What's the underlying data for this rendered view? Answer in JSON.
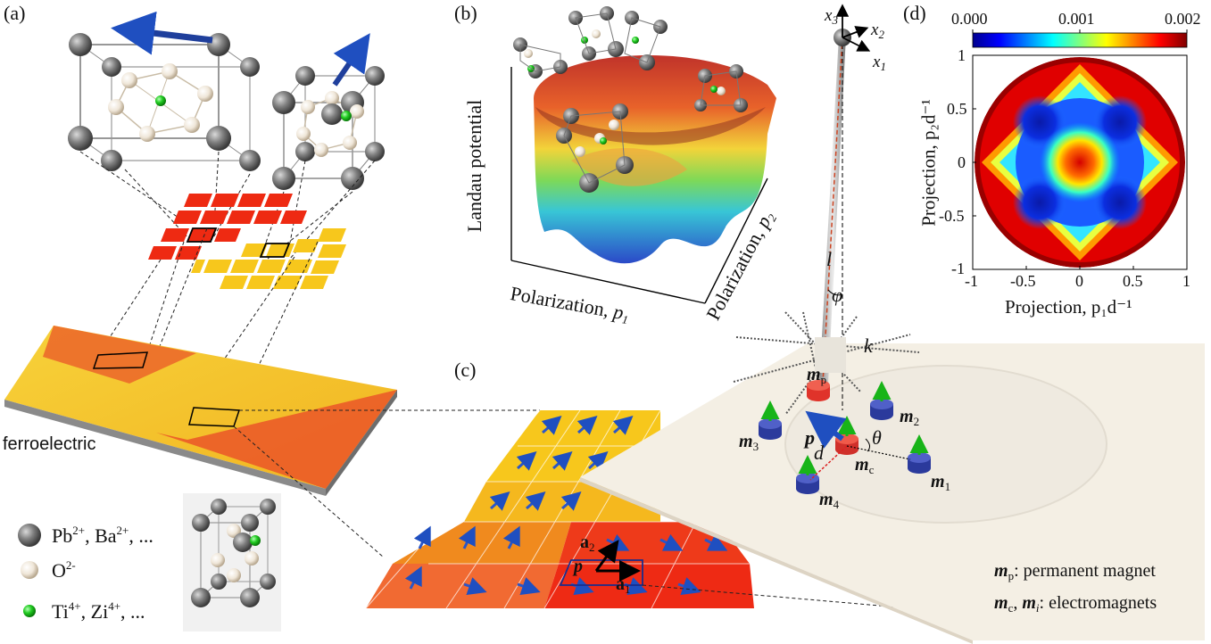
{
  "panels": {
    "a": "(a)",
    "b": "(b)",
    "c": "(c)",
    "d": "(d)"
  },
  "panel_a": {
    "material_label": "ferroelectric",
    "legend": [
      {
        "ion": "Pb",
        "charge": "2+",
        "rest": ", Ba",
        "charge2": "2+",
        "tail": ", ...",
        "color": "#6e6e6e"
      },
      {
        "ion": "O",
        "charge": "2-",
        "rest": "",
        "charge2": "",
        "tail": "",
        "color": "#e8dccb"
      },
      {
        "ion": "Ti",
        "charge": "4+",
        "rest": ", Zi",
        "charge2": "4+",
        "tail": ", ...",
        "color": "#19c419"
      }
    ]
  },
  "panel_b": {
    "ylabel": "Landau potential",
    "xlabel": "Polarization, ",
    "xvar": "p",
    "xsub": "1",
    "zlabel": "Polarization, ",
    "zvar": "p",
    "zsub": "2"
  },
  "panel_c": {
    "axes": {
      "x1": "x",
      "x1sub": "1",
      "x2": "x",
      "x2sub": "2",
      "x3": "x",
      "x3sub": "3"
    },
    "symbols": {
      "l": "l",
      "phi": "φ",
      "k": "k",
      "theta": "θ",
      "d": "d",
      "p": "p"
    },
    "magnets": {
      "mp": {
        "sym": "m",
        "sub": "p"
      },
      "mc": {
        "sym": "m",
        "sub": "c"
      },
      "m1": {
        "sym": "m",
        "sub": "1"
      },
      "m2": {
        "sym": "m",
        "sub": "2"
      },
      "m3": {
        "sym": "m",
        "sub": "3"
      },
      "m4": {
        "sym": "m",
        "sub": "4"
      }
    },
    "lattice": {
      "a1": "a",
      "a1sub": "1",
      "a2": "a",
      "a2sub": "2",
      "p": "p"
    },
    "caption1": {
      "sym": "m",
      "sub": "p",
      "text": ": permanent magnet"
    },
    "caption2": {
      "sym1": "m",
      "sub1": "c",
      "sep": ", ",
      "sym2": "m",
      "sub2": "i",
      "text": ": electromagnets"
    }
  },
  "chart_data": {
    "type": "heatmap",
    "colorbar_ticks": [
      "0.000",
      "0.001",
      "0.002"
    ],
    "colorbar_range": [
      0,
      0.002
    ],
    "xlabel": "Projection, p₁d⁻¹",
    "ylabel": "Projection, p₂d⁻¹",
    "x_ticks": [
      "-1",
      "-0.5",
      "0",
      "0.5",
      "1"
    ],
    "y_ticks": [
      "1",
      "0.5",
      "0",
      "-0.5",
      "-1"
    ],
    "xlim": [
      -1,
      1
    ],
    "ylim": [
      -1,
      1
    ],
    "colormap": "jet",
    "domain": "unit disk",
    "minima_at": [
      [
        0.5,
        0.5
      ],
      [
        -0.5,
        0.5
      ],
      [
        -0.5,
        -0.5
      ],
      [
        0.5,
        -0.5
      ]
    ],
    "maxima_at": [
      [
        0,
        0
      ]
    ]
  },
  "colors": {
    "domain_red": "#e83a1e",
    "domain_yellow": "#f5c218",
    "magnet_blue": "#2b3a9c",
    "magnet_red": "#e0332a",
    "arrow_green": "#18b418",
    "arrow_blue": "#1f4fc0"
  }
}
